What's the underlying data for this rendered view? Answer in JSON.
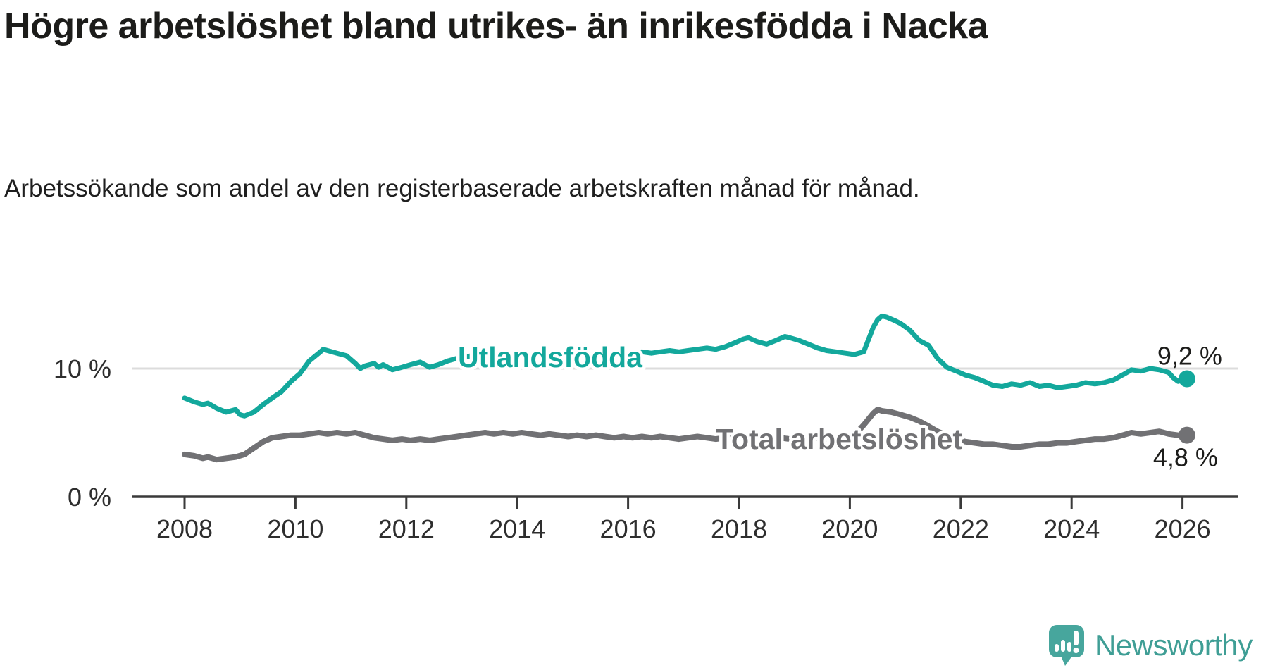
{
  "header": {
    "title": "Högre arbetslöshet bland utrikes- än inrikesfödda i Nacka",
    "subtitle": "Arbetssökande som andel av den registerbaserade arbetskraften månad för månad."
  },
  "colors": {
    "foreign_born_line": "#13a89c",
    "total_line": "#717174",
    "grid": "#dcdcdc",
    "axis": "#3a3a3a",
    "text": "#1c1c1a",
    "logo_teal": "#47a69d",
    "logo_text_teal": "#3f9e95"
  },
  "footer": {
    "logo_text": "Newsworthy"
  },
  "chart_data": {
    "type": "line",
    "title": "Högre arbetslöshet bland utrikes- än inrikesfödda i Nacka",
    "subtitle": "Arbetssökande som andel av den registerbaserade arbetskraften månad för månad.",
    "unit": "%",
    "x_range": [
      2008.0,
      2026.1
    ],
    "ylim": [
      0,
      15
    ],
    "grid": "single-line-at-10",
    "x_ticks": [
      {
        "value": 2008,
        "label": "2008"
      },
      {
        "value": 2010,
        "label": "2010"
      },
      {
        "value": 2012,
        "label": "2012"
      },
      {
        "value": 2014,
        "label": "2014"
      },
      {
        "value": 2016,
        "label": "2016"
      },
      {
        "value": 2018,
        "label": "2018"
      },
      {
        "value": 2020,
        "label": "2020"
      },
      {
        "value": 2022,
        "label": "2022"
      },
      {
        "value": 2024,
        "label": "2024"
      },
      {
        "value": 2026,
        "label": "2026"
      }
    ],
    "y_ticks": [
      {
        "value": 10,
        "label": "10 %"
      },
      {
        "value": 0,
        "label": "0 %"
      }
    ],
    "series": [
      {
        "name": "Utlandsfödda",
        "end_label": "9,2 %",
        "end_value": 9.2,
        "color": "#13a89c",
        "points": [
          [
            2008.0,
            7.7
          ],
          [
            2008.17,
            7.4
          ],
          [
            2008.33,
            7.2
          ],
          [
            2008.42,
            7.3
          ],
          [
            2008.58,
            6.9
          ],
          [
            2008.75,
            6.6
          ],
          [
            2008.92,
            6.8
          ],
          [
            2009.0,
            6.4
          ],
          [
            2009.08,
            6.3
          ],
          [
            2009.25,
            6.6
          ],
          [
            2009.42,
            7.2
          ],
          [
            2009.58,
            7.7
          ],
          [
            2009.75,
            8.2
          ],
          [
            2009.92,
            9.0
          ],
          [
            2010.08,
            9.6
          ],
          [
            2010.25,
            10.6
          ],
          [
            2010.42,
            11.2
          ],
          [
            2010.5,
            11.5
          ],
          [
            2010.58,
            11.4
          ],
          [
            2010.75,
            11.2
          ],
          [
            2010.92,
            11.0
          ],
          [
            2011.08,
            10.4
          ],
          [
            2011.17,
            10.0
          ],
          [
            2011.25,
            10.2
          ],
          [
            2011.42,
            10.4
          ],
          [
            2011.5,
            10.1
          ],
          [
            2011.58,
            10.3
          ],
          [
            2011.75,
            9.9
          ],
          [
            2011.92,
            10.1
          ],
          [
            2012.08,
            10.3
          ],
          [
            2012.25,
            10.5
          ],
          [
            2012.42,
            10.1
          ],
          [
            2012.58,
            10.3
          ],
          [
            2012.75,
            10.6
          ],
          [
            2012.92,
            10.8
          ],
          [
            2013.08,
            10.9
          ],
          [
            2013.25,
            11.1
          ],
          [
            2013.42,
            11.0
          ],
          [
            2013.58,
            11.1
          ],
          [
            2013.75,
            11.0
          ],
          [
            2013.92,
            11.1
          ],
          [
            2014.08,
            11.0
          ],
          [
            2014.25,
            11.1
          ],
          [
            2014.42,
            10.9
          ],
          [
            2014.58,
            11.0
          ],
          [
            2014.75,
            10.9
          ],
          [
            2014.92,
            11.0
          ],
          [
            2015.08,
            11.1
          ],
          [
            2015.25,
            11.0
          ],
          [
            2015.42,
            11.2
          ],
          [
            2015.58,
            11.1
          ],
          [
            2015.75,
            11.2
          ],
          [
            2015.92,
            11.1
          ],
          [
            2016.08,
            11.2
          ],
          [
            2016.25,
            11.3
          ],
          [
            2016.42,
            11.2
          ],
          [
            2016.58,
            11.3
          ],
          [
            2016.75,
            11.4
          ],
          [
            2016.92,
            11.3
          ],
          [
            2017.08,
            11.4
          ],
          [
            2017.25,
            11.5
          ],
          [
            2017.42,
            11.6
          ],
          [
            2017.58,
            11.5
          ],
          [
            2017.75,
            11.7
          ],
          [
            2017.92,
            12.0
          ],
          [
            2018.08,
            12.3
          ],
          [
            2018.17,
            12.4
          ],
          [
            2018.33,
            12.1
          ],
          [
            2018.5,
            11.9
          ],
          [
            2018.67,
            12.2
          ],
          [
            2018.83,
            12.5
          ],
          [
            2018.92,
            12.4
          ],
          [
            2019.08,
            12.2
          ],
          [
            2019.25,
            11.9
          ],
          [
            2019.42,
            11.6
          ],
          [
            2019.58,
            11.4
          ],
          [
            2019.75,
            11.3
          ],
          [
            2019.92,
            11.2
          ],
          [
            2020.08,
            11.1
          ],
          [
            2020.25,
            11.3
          ],
          [
            2020.33,
            12.2
          ],
          [
            2020.42,
            13.2
          ],
          [
            2020.5,
            13.8
          ],
          [
            2020.58,
            14.1
          ],
          [
            2020.67,
            14.0
          ],
          [
            2020.83,
            13.7
          ],
          [
            2020.92,
            13.5
          ],
          [
            2021.08,
            13.0
          ],
          [
            2021.25,
            12.2
          ],
          [
            2021.42,
            11.8
          ],
          [
            2021.58,
            10.8
          ],
          [
            2021.75,
            10.1
          ],
          [
            2021.92,
            9.8
          ],
          [
            2022.08,
            9.5
          ],
          [
            2022.25,
            9.3
          ],
          [
            2022.42,
            9.0
          ],
          [
            2022.58,
            8.7
          ],
          [
            2022.75,
            8.6
          ],
          [
            2022.92,
            8.8
          ],
          [
            2023.08,
            8.7
          ],
          [
            2023.25,
            8.9
          ],
          [
            2023.42,
            8.6
          ],
          [
            2023.58,
            8.7
          ],
          [
            2023.75,
            8.5
          ],
          [
            2023.92,
            8.6
          ],
          [
            2024.08,
            8.7
          ],
          [
            2024.25,
            8.9
          ],
          [
            2024.42,
            8.8
          ],
          [
            2024.58,
            8.9
          ],
          [
            2024.75,
            9.1
          ],
          [
            2024.92,
            9.5
          ],
          [
            2025.08,
            9.9
          ],
          [
            2025.25,
            9.8
          ],
          [
            2025.42,
            10.0
          ],
          [
            2025.58,
            9.9
          ],
          [
            2025.75,
            9.7
          ],
          [
            2025.83,
            9.3
          ],
          [
            2025.92,
            9.0
          ],
          [
            2026.08,
            9.2
          ]
        ]
      },
      {
        "name": "Total arbetslöshet",
        "end_label": "4,8 %",
        "end_value": 4.8,
        "color": "#717174",
        "points": [
          [
            2008.0,
            3.3
          ],
          [
            2008.17,
            3.2
          ],
          [
            2008.33,
            3.0
          ],
          [
            2008.42,
            3.1
          ],
          [
            2008.58,
            2.9
          ],
          [
            2008.75,
            3.0
          ],
          [
            2008.92,
            3.1
          ],
          [
            2009.08,
            3.3
          ],
          [
            2009.25,
            3.8
          ],
          [
            2009.42,
            4.3
          ],
          [
            2009.58,
            4.6
          ],
          [
            2009.75,
            4.7
          ],
          [
            2009.92,
            4.8
          ],
          [
            2010.08,
            4.8
          ],
          [
            2010.25,
            4.9
          ],
          [
            2010.42,
            5.0
          ],
          [
            2010.58,
            4.9
          ],
          [
            2010.75,
            5.0
          ],
          [
            2010.92,
            4.9
          ],
          [
            2011.08,
            5.0
          ],
          [
            2011.25,
            4.8
          ],
          [
            2011.42,
            4.6
          ],
          [
            2011.58,
            4.5
          ],
          [
            2011.75,
            4.4
          ],
          [
            2011.92,
            4.5
          ],
          [
            2012.08,
            4.4
          ],
          [
            2012.25,
            4.5
          ],
          [
            2012.42,
            4.4
          ],
          [
            2012.58,
            4.5
          ],
          [
            2012.75,
            4.6
          ],
          [
            2012.92,
            4.7
          ],
          [
            2013.08,
            4.8
          ],
          [
            2013.25,
            4.9
          ],
          [
            2013.42,
            5.0
          ],
          [
            2013.58,
            4.9
          ],
          [
            2013.75,
            5.0
          ],
          [
            2013.92,
            4.9
          ],
          [
            2014.08,
            5.0
          ],
          [
            2014.25,
            4.9
          ],
          [
            2014.42,
            4.8
          ],
          [
            2014.58,
            4.9
          ],
          [
            2014.75,
            4.8
          ],
          [
            2014.92,
            4.7
          ],
          [
            2015.08,
            4.8
          ],
          [
            2015.25,
            4.7
          ],
          [
            2015.42,
            4.8
          ],
          [
            2015.58,
            4.7
          ],
          [
            2015.75,
            4.6
          ],
          [
            2015.92,
            4.7
          ],
          [
            2016.08,
            4.6
          ],
          [
            2016.25,
            4.7
          ],
          [
            2016.42,
            4.6
          ],
          [
            2016.58,
            4.7
          ],
          [
            2016.75,
            4.6
          ],
          [
            2016.92,
            4.5
          ],
          [
            2017.08,
            4.6
          ],
          [
            2017.25,
            4.7
          ],
          [
            2017.42,
            4.6
          ],
          [
            2017.58,
            4.5
          ],
          [
            2017.75,
            4.6
          ],
          [
            2017.92,
            4.5
          ],
          [
            2018.08,
            4.6
          ],
          [
            2018.25,
            4.5
          ],
          [
            2018.42,
            4.6
          ],
          [
            2018.58,
            4.5
          ],
          [
            2018.75,
            4.6
          ],
          [
            2018.92,
            4.5
          ],
          [
            2019.08,
            4.6
          ],
          [
            2019.25,
            4.5
          ],
          [
            2019.42,
            4.6
          ],
          [
            2019.58,
            4.4
          ],
          [
            2019.75,
            4.5
          ],
          [
            2019.92,
            4.6
          ],
          [
            2020.08,
            4.8
          ],
          [
            2020.25,
            5.6
          ],
          [
            2020.42,
            6.5
          ],
          [
            2020.5,
            6.8
          ],
          [
            2020.58,
            6.7
          ],
          [
            2020.75,
            6.6
          ],
          [
            2020.92,
            6.4
          ],
          [
            2021.08,
            6.2
          ],
          [
            2021.25,
            5.9
          ],
          [
            2021.42,
            5.5
          ],
          [
            2021.58,
            5.1
          ],
          [
            2021.75,
            4.8
          ],
          [
            2021.92,
            4.5
          ],
          [
            2022.08,
            4.3
          ],
          [
            2022.25,
            4.2
          ],
          [
            2022.42,
            4.1
          ],
          [
            2022.58,
            4.1
          ],
          [
            2022.75,
            4.0
          ],
          [
            2022.92,
            3.9
          ],
          [
            2023.08,
            3.9
          ],
          [
            2023.25,
            4.0
          ],
          [
            2023.42,
            4.1
          ],
          [
            2023.58,
            4.1
          ],
          [
            2023.75,
            4.2
          ],
          [
            2023.92,
            4.2
          ],
          [
            2024.08,
            4.3
          ],
          [
            2024.25,
            4.4
          ],
          [
            2024.42,
            4.5
          ],
          [
            2024.58,
            4.5
          ],
          [
            2024.75,
            4.6
          ],
          [
            2024.92,
            4.8
          ],
          [
            2025.08,
            5.0
          ],
          [
            2025.25,
            4.9
          ],
          [
            2025.42,
            5.0
          ],
          [
            2025.58,
            5.1
          ],
          [
            2025.75,
            4.9
          ],
          [
            2025.92,
            4.8
          ],
          [
            2026.08,
            4.8
          ]
        ]
      }
    ],
    "legend_position": "inline-labels-on-lines",
    "annotations": [
      {
        "text": "Utlandsfödda",
        "series": "Utlandsfödda"
      },
      {
        "text": "Total arbetslöshet",
        "series": "Total arbetslöshet"
      },
      {
        "text": "9,2 %",
        "series": "Utlandsfödda",
        "at": "end"
      },
      {
        "text": "4,8 %",
        "series": "Total arbetslöshet",
        "at": "end"
      }
    ]
  }
}
